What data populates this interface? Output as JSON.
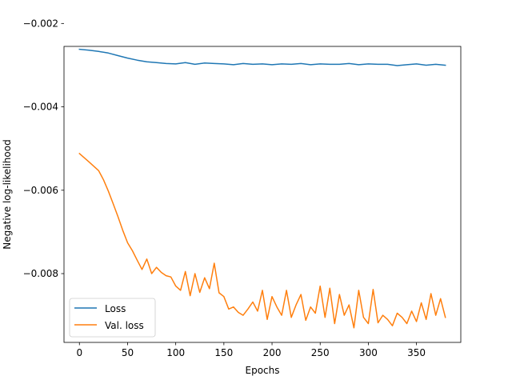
{
  "chart_data": {
    "type": "line",
    "title": "",
    "xlabel": "Epochs",
    "ylabel": "Negative log-likelihood",
    "xlim": [
      -16,
      396
    ],
    "ylim": [
      -0.00965,
      -0.00255
    ],
    "xticks": [
      0,
      50,
      100,
      150,
      200,
      250,
      300,
      350
    ],
    "xtick_labels": [
      "0",
      "50",
      "100",
      "150",
      "200",
      "250",
      "300",
      "350"
    ],
    "yticks": [
      -0.002,
      -0.004,
      -0.006,
      -0.008
    ],
    "ytick_labels": [
      "−0.002",
      "−0.004",
      "−0.006",
      "−0.008"
    ],
    "grid": false,
    "legend_position": "lower left",
    "series": [
      {
        "name": "Loss",
        "color": "#1f77b4",
        "x": [
          0,
          10,
          20,
          30,
          40,
          50,
          60,
          70,
          80,
          90,
          100,
          110,
          120,
          130,
          140,
          150,
          160,
          170,
          180,
          190,
          200,
          210,
          220,
          230,
          240,
          250,
          260,
          270,
          280,
          290,
          300,
          310,
          320,
          330,
          340,
          350,
          360,
          370,
          380
        ],
        "y": [
          -0.00262,
          -0.00264,
          -0.00267,
          -0.00271,
          -0.00277,
          -0.00283,
          -0.00288,
          -0.00292,
          -0.00294,
          -0.00296,
          -0.00297,
          -0.00294,
          -0.00298,
          -0.00295,
          -0.00296,
          -0.00297,
          -0.00299,
          -0.00296,
          -0.00298,
          -0.00297,
          -0.00299,
          -0.00297,
          -0.00298,
          -0.00296,
          -0.00299,
          -0.00297,
          -0.00298,
          -0.00298,
          -0.00296,
          -0.00299,
          -0.00297,
          -0.00298,
          -0.00298,
          -0.00301,
          -0.00299,
          -0.00297,
          -0.003,
          -0.00298,
          -0.003
        ]
      },
      {
        "name": "Val. loss",
        "color": "#ff7f0e",
        "x": [
          0,
          10,
          20,
          25,
          30,
          35,
          40,
          45,
          50,
          55,
          60,
          65,
          70,
          75,
          80,
          85,
          90,
          95,
          100,
          105,
          110,
          115,
          120,
          125,
          130,
          135,
          140,
          145,
          150,
          155,
          160,
          165,
          170,
          175,
          180,
          185,
          190,
          195,
          200,
          205,
          210,
          215,
          220,
          225,
          230,
          235,
          240,
          245,
          250,
          255,
          260,
          265,
          270,
          275,
          280,
          285,
          290,
          295,
          300,
          305,
          310,
          315,
          320,
          325,
          330,
          335,
          340,
          345,
          350,
          355,
          360,
          365,
          370,
          375,
          380
        ],
        "y": [
          -0.00512,
          -0.00532,
          -0.00553,
          -0.00575,
          -0.00602,
          -0.00632,
          -0.00663,
          -0.00696,
          -0.00726,
          -0.00745,
          -0.00768,
          -0.0079,
          -0.00765,
          -0.008,
          -0.00785,
          -0.00797,
          -0.00805,
          -0.00808,
          -0.0083,
          -0.0084,
          -0.00795,
          -0.00853,
          -0.008,
          -0.00845,
          -0.0081,
          -0.00836,
          -0.00775,
          -0.00846,
          -0.00855,
          -0.00885,
          -0.0088,
          -0.00893,
          -0.009,
          -0.00885,
          -0.00868,
          -0.0089,
          -0.0084,
          -0.0091,
          -0.00855,
          -0.0088,
          -0.009,
          -0.0084,
          -0.00905,
          -0.00875,
          -0.0085,
          -0.00912,
          -0.0088,
          -0.00895,
          -0.0083,
          -0.00905,
          -0.00835,
          -0.0092,
          -0.0085,
          -0.009,
          -0.00875,
          -0.0093,
          -0.0084,
          -0.00905,
          -0.0092,
          -0.00838,
          -0.00918,
          -0.009,
          -0.0091,
          -0.00925,
          -0.00895,
          -0.00905,
          -0.0092,
          -0.0089,
          -0.00915,
          -0.0087,
          -0.0091,
          -0.00848,
          -0.009,
          -0.0086,
          -0.00905
        ]
      }
    ]
  }
}
